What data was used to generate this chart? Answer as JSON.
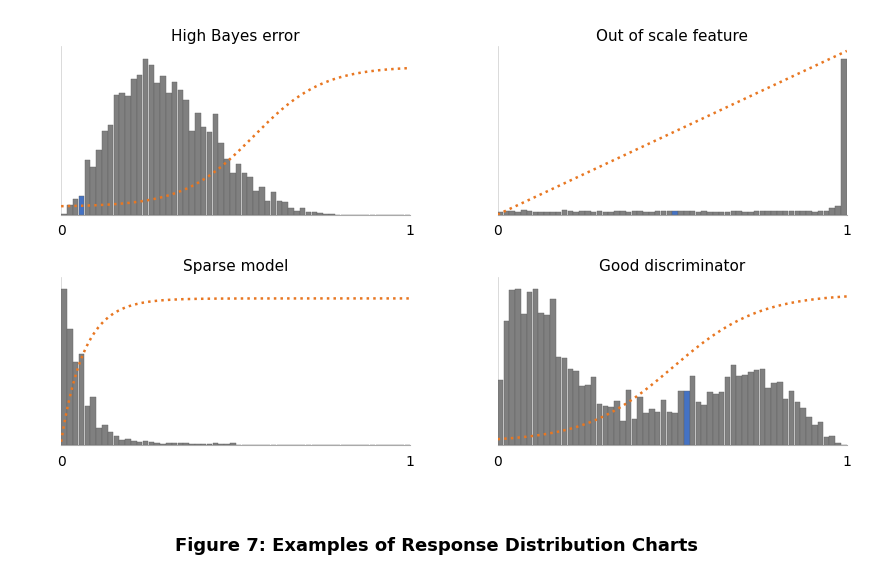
{
  "titles": [
    "High Bayes error",
    "Out of scale feature",
    "Sparse model",
    "Good discriminator"
  ],
  "bar_color": "#808080",
  "bar_edge_color": "#606060",
  "dotted_line_color": "#E87722",
  "blue_bar_color": "#4472C4",
  "grid_color": "#cccccc",
  "background_color": "#ffffff",
  "n_bins": 60,
  "fig_caption": "Figure 7: Examples of Response Distribution Charts",
  "caption_fontsize": 13
}
